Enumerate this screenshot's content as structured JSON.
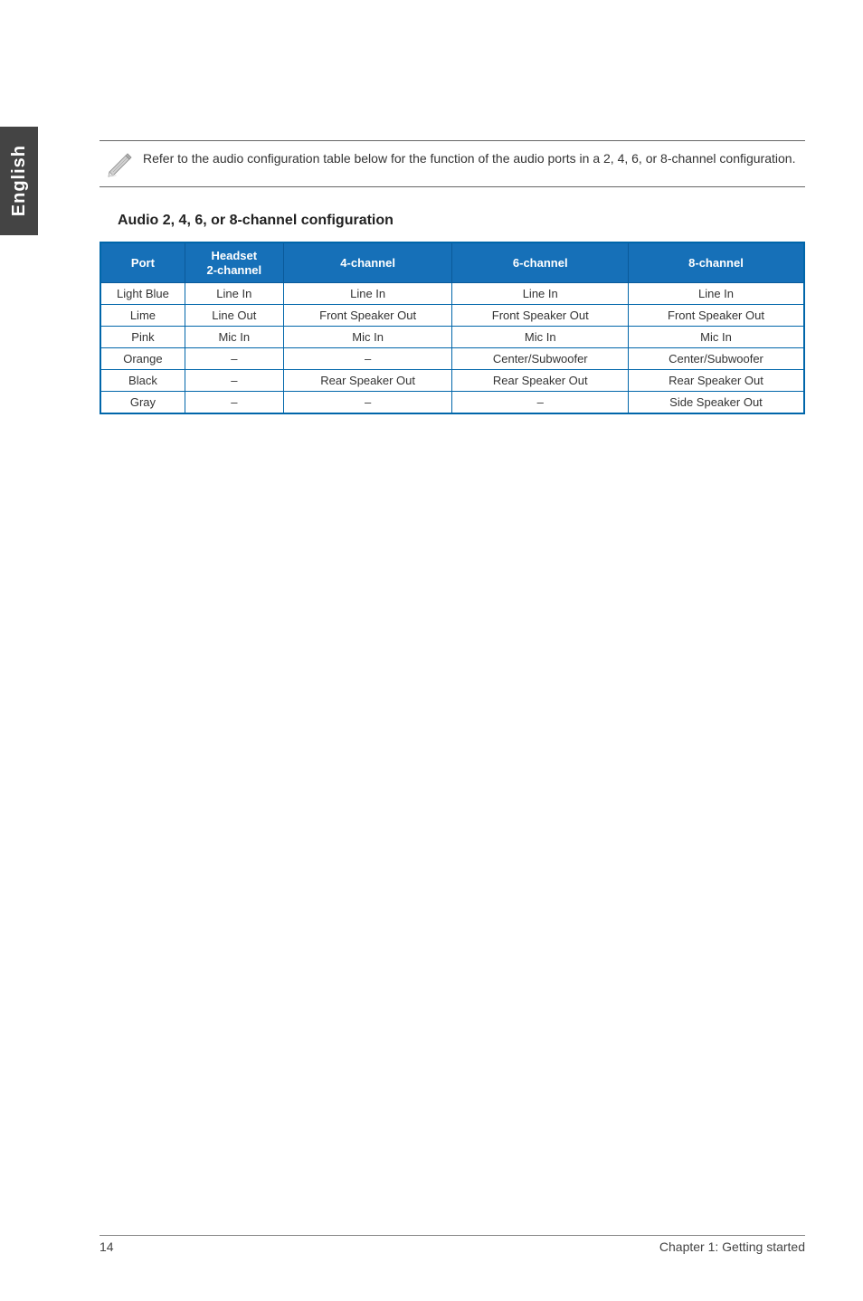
{
  "sideTabLabel": "English",
  "noteText": "Refer to the audio configuration table below for the function of the audio ports in a 2, 4, 6, or 8-channel configuration.",
  "sectionTitle": "Audio 2, 4, 6, or 8-channel configuration",
  "table": {
    "headers": {
      "port": "Port",
      "headset": "Headset\n2-channel",
      "ch4": "4-channel",
      "ch6": "6-channel",
      "ch8": "8-channel"
    },
    "rows": [
      {
        "port": "Light Blue",
        "headset": "Line In",
        "ch4": "Line In",
        "ch6": "Line In",
        "ch8": "Line In"
      },
      {
        "port": "Lime",
        "headset": "Line Out",
        "ch4": "Front Speaker Out",
        "ch6": "Front Speaker Out",
        "ch8": "Front Speaker Out"
      },
      {
        "port": "Pink",
        "headset": "Mic In",
        "ch4": "Mic In",
        "ch6": "Mic In",
        "ch8": "Mic In"
      },
      {
        "port": "Orange",
        "headset": "–",
        "ch4": "–",
        "ch6": "Center/Subwoofer",
        "ch8": "Center/Subwoofer"
      },
      {
        "port": "Black",
        "headset": "–",
        "ch4": "Rear Speaker Out",
        "ch6": "Rear Speaker Out",
        "ch8": "Rear Speaker Out"
      },
      {
        "port": "Gray",
        "headset": "–",
        "ch4": "–",
        "ch6": "–",
        "ch8": "Side Speaker Out"
      }
    ],
    "colWidths": [
      "12%",
      "14%",
      "24%",
      "25%",
      "25%"
    ],
    "headerBg": "#1670b8",
    "borderColor": "#0066aa"
  },
  "footer": {
    "pageNumber": "14",
    "chapterText": "Chapter 1: Getting started"
  }
}
